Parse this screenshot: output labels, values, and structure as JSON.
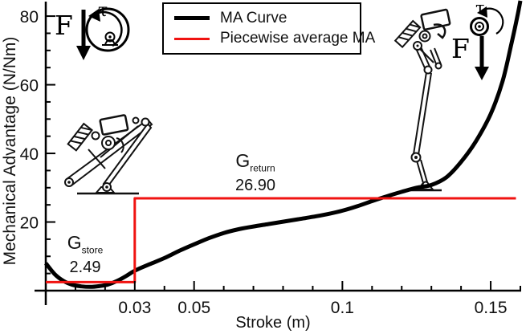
{
  "chart_data": {
    "type": "line",
    "title": "",
    "xlabel": "Stroke (m)",
    "ylabel": "Mechanical Advantage (N/Nm)",
    "xlim": [
      0,
      0.16
    ],
    "ylim": [
      0,
      84.7
    ],
    "grid": false,
    "legend_position": "top-center-inside",
    "x_major_ticks": [
      0.03,
      0.05,
      0.1,
      0.15
    ],
    "x_tick_labels": [
      "0.03",
      "0.05",
      "0.1",
      "0.15"
    ],
    "x_minor_tick_step": 0.01,
    "y_major_ticks": [
      20,
      40,
      60,
      80
    ],
    "y_tick_labels": [
      "20",
      "40",
      "60",
      "80"
    ],
    "y_minor_tick_step": 5,
    "series": [
      {
        "name": "MA Curve",
        "color": "#000000",
        "line_width": 5,
        "smooth": true,
        "points": [
          [
            0.0,
            8.0
          ],
          [
            0.003,
            4.8
          ],
          [
            0.006,
            2.8
          ],
          [
            0.009,
            1.7
          ],
          [
            0.012,
            1.25
          ],
          [
            0.015,
            1.1
          ],
          [
            0.018,
            1.3
          ],
          [
            0.021,
            1.8
          ],
          [
            0.024,
            2.8
          ],
          [
            0.027,
            4.2
          ],
          [
            0.03,
            5.8
          ],
          [
            0.035,
            7.7
          ],
          [
            0.04,
            9.5
          ],
          [
            0.045,
            11.6
          ],
          [
            0.05,
            13.5
          ],
          [
            0.055,
            15.3
          ],
          [
            0.06,
            16.8
          ],
          [
            0.065,
            17.9
          ],
          [
            0.07,
            18.7
          ],
          [
            0.075,
            19.4
          ],
          [
            0.08,
            20.1
          ],
          [
            0.085,
            20.8
          ],
          [
            0.09,
            21.5
          ],
          [
            0.095,
            22.3
          ],
          [
            0.1,
            23.3
          ],
          [
            0.105,
            24.6
          ],
          [
            0.11,
            26.1
          ],
          [
            0.115,
            27.5
          ],
          [
            0.12,
            28.8
          ],
          [
            0.125,
            30.0
          ],
          [
            0.13,
            30.8
          ],
          [
            0.135,
            33.0
          ],
          [
            0.14,
            37.5
          ],
          [
            0.145,
            43.5
          ],
          [
            0.15,
            51.5
          ],
          [
            0.154,
            61.0
          ],
          [
            0.157,
            72.0
          ],
          [
            0.159,
            80.0
          ],
          [
            0.16,
            84.5
          ]
        ]
      },
      {
        "name": "Piecewise average MA",
        "color": "#f01311",
        "line_width": 3,
        "smooth": false,
        "points": [
          [
            0.0,
            2.49
          ],
          [
            0.03,
            2.49
          ],
          [
            0.03,
            26.9
          ],
          [
            0.1585,
            26.9
          ]
        ]
      }
    ],
    "annotations": {
      "store": {
        "symbol": "G",
        "subscript": "store",
        "value": "2.49",
        "x": 0.013,
        "y": 11
      },
      "return": {
        "symbol": "G",
        "subscript": "return",
        "value": "26.90",
        "x": 0.07,
        "y": 33
      }
    }
  },
  "figure_annotations": {
    "left_actuation": {
      "tau": "τ",
      "force": "F"
    },
    "right_actuation": {
      "tau": "τ",
      "force": "F"
    }
  }
}
